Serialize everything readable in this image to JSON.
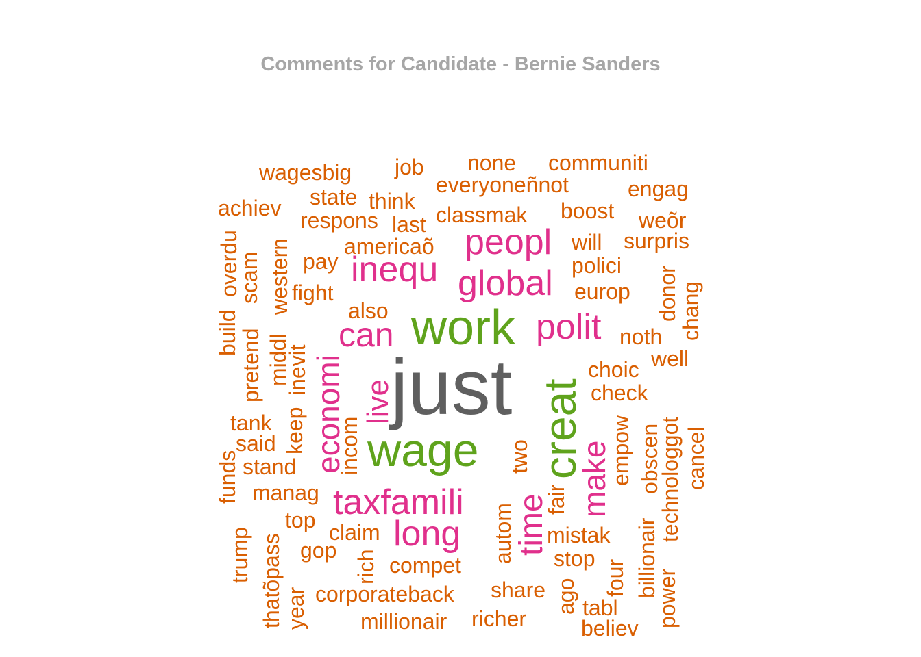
{
  "title": "Comments for Candidate - Bernie Sanders",
  "colors": {
    "rank1": "#5f5f5f",
    "rank2": "#5fa31c",
    "rank3": "#e0308c",
    "rank4": "#d95f02",
    "title": "#a6a6a6"
  },
  "words": [
    {
      "text": "just",
      "color": "rank1"
    },
    {
      "text": "work",
      "color": "rank2"
    },
    {
      "text": "wage",
      "color": "rank2"
    },
    {
      "text": "creat",
      "color": "rank2"
    },
    {
      "text": "peopl",
      "color": "rank3"
    },
    {
      "text": "inequ",
      "color": "rank3"
    },
    {
      "text": "global",
      "color": "rank3"
    },
    {
      "text": "polit",
      "color": "rank3"
    },
    {
      "text": "can",
      "color": "rank3"
    },
    {
      "text": "economi",
      "color": "rank3"
    },
    {
      "text": "live",
      "color": "rank3"
    },
    {
      "text": "make",
      "color": "rank3"
    },
    {
      "text": "taxfamili",
      "color": "rank3"
    },
    {
      "text": "long",
      "color": "rank3"
    },
    {
      "text": "time",
      "color": "rank3"
    },
    {
      "text": "wagesbig",
      "color": "rank4"
    },
    {
      "text": "job",
      "color": "rank4"
    },
    {
      "text": "none",
      "color": "rank4"
    },
    {
      "text": "communiti",
      "color": "rank4"
    },
    {
      "text": "everyoneñnot",
      "color": "rank4"
    },
    {
      "text": "engag",
      "color": "rank4"
    },
    {
      "text": "state",
      "color": "rank4"
    },
    {
      "text": "think",
      "color": "rank4"
    },
    {
      "text": "achiev",
      "color": "rank4"
    },
    {
      "text": "respons",
      "color": "rank4"
    },
    {
      "text": "last",
      "color": "rank4"
    },
    {
      "text": "classmak",
      "color": "rank4"
    },
    {
      "text": "boost",
      "color": "rank4"
    },
    {
      "text": "weõr",
      "color": "rank4"
    },
    {
      "text": "americaõ",
      "color": "rank4"
    },
    {
      "text": "will",
      "color": "rank4"
    },
    {
      "text": "surpris",
      "color": "rank4"
    },
    {
      "text": "pay",
      "color": "rank4"
    },
    {
      "text": "polici",
      "color": "rank4"
    },
    {
      "text": "fight",
      "color": "rank4"
    },
    {
      "text": "europ",
      "color": "rank4"
    },
    {
      "text": "also",
      "color": "rank4"
    },
    {
      "text": "noth",
      "color": "rank4"
    },
    {
      "text": "well",
      "color": "rank4"
    },
    {
      "text": "choic",
      "color": "rank4"
    },
    {
      "text": "check",
      "color": "rank4"
    },
    {
      "text": "tank",
      "color": "rank4"
    },
    {
      "text": "said",
      "color": "rank4"
    },
    {
      "text": "stand",
      "color": "rank4"
    },
    {
      "text": "manag",
      "color": "rank4"
    },
    {
      "text": "top",
      "color": "rank4"
    },
    {
      "text": "claim",
      "color": "rank4"
    },
    {
      "text": "gop",
      "color": "rank4"
    },
    {
      "text": "compet",
      "color": "rank4"
    },
    {
      "text": "corporateback",
      "color": "rank4"
    },
    {
      "text": "millionair",
      "color": "rank4"
    },
    {
      "text": "richer",
      "color": "rank4"
    },
    {
      "text": "share",
      "color": "rank4"
    },
    {
      "text": "mistak",
      "color": "rank4"
    },
    {
      "text": "stop",
      "color": "rank4"
    },
    {
      "text": "tabl",
      "color": "rank4"
    },
    {
      "text": "believ",
      "color": "rank4"
    },
    {
      "text": "overdu",
      "color": "rank4"
    },
    {
      "text": "build",
      "color": "rank4"
    },
    {
      "text": "scam",
      "color": "rank4"
    },
    {
      "text": "pretend",
      "color": "rank4"
    },
    {
      "text": "western",
      "color": "rank4"
    },
    {
      "text": "middl",
      "color": "rank4"
    },
    {
      "text": "inevit",
      "color": "rank4"
    },
    {
      "text": "keep",
      "color": "rank4"
    },
    {
      "text": "funds",
      "color": "rank4"
    },
    {
      "text": "incom",
      "color": "rank4"
    },
    {
      "text": "trump",
      "color": "rank4"
    },
    {
      "text": "thatõpass",
      "color": "rank4"
    },
    {
      "text": "year",
      "color": "rank4"
    },
    {
      "text": "rich",
      "color": "rank4"
    },
    {
      "text": "autom",
      "color": "rank4"
    },
    {
      "text": "two",
      "color": "rank4"
    },
    {
      "text": "fair",
      "color": "rank4"
    },
    {
      "text": "ago",
      "color": "rank4"
    },
    {
      "text": "four",
      "color": "rank4"
    },
    {
      "text": "empow",
      "color": "rank4"
    },
    {
      "text": "obscen",
      "color": "rank4"
    },
    {
      "text": "billionair",
      "color": "rank4"
    },
    {
      "text": "technologgot",
      "color": "rank4"
    },
    {
      "text": "power",
      "color": "rank4"
    },
    {
      "text": "donor",
      "color": "rank4"
    },
    {
      "text": "chang",
      "color": "rank4"
    },
    {
      "text": "cancel",
      "color": "rank4"
    }
  ]
}
